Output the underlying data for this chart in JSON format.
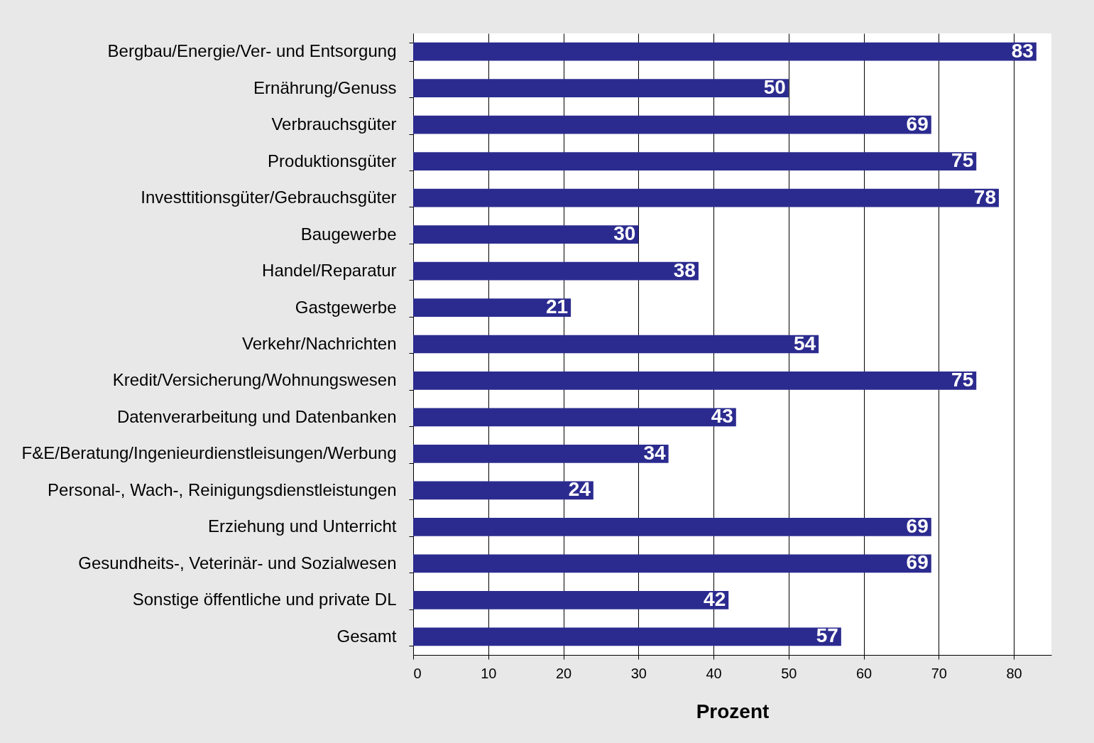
{
  "chart_data": {
    "type": "bar",
    "orientation": "horizontal",
    "xlabel": "Prozent",
    "categories": [
      "Bergbau/Energie/Ver- und Entsorgung",
      "Ernährung/Genuss",
      "Verbrauchsgüter",
      "Produktionsgüter",
      "Investtitionsgüter/Gebrauchsgüter",
      "Baugewerbe",
      "Handel/Reparatur",
      "Gastgewerbe",
      "Verkehr/Nachrichten",
      "Kredit/Versicherung/Wohnungswesen",
      "Datenverarbeitung und Datenbanken",
      "F&E/Beratung/Ingenieurdienstleisungen/Werbung",
      "Personal-, Wach-, Reinigungsdienstleistungen",
      "Erziehung und Unterricht",
      "Gesundheits-, Veterinär- und Sozialwesen",
      "Sonstige öffentliche und private DL",
      "Gesamt"
    ],
    "values": [
      83,
      50,
      69,
      75,
      78,
      30,
      38,
      21,
      54,
      75,
      43,
      34,
      24,
      69,
      69,
      42,
      57
    ],
    "color": "#2b2b8f",
    "data_labels": true,
    "grid": "x",
    "xlim": [
      0,
      85
    ],
    "xticks": [
      0,
      10,
      20,
      30,
      40,
      50,
      60,
      70,
      80
    ]
  }
}
